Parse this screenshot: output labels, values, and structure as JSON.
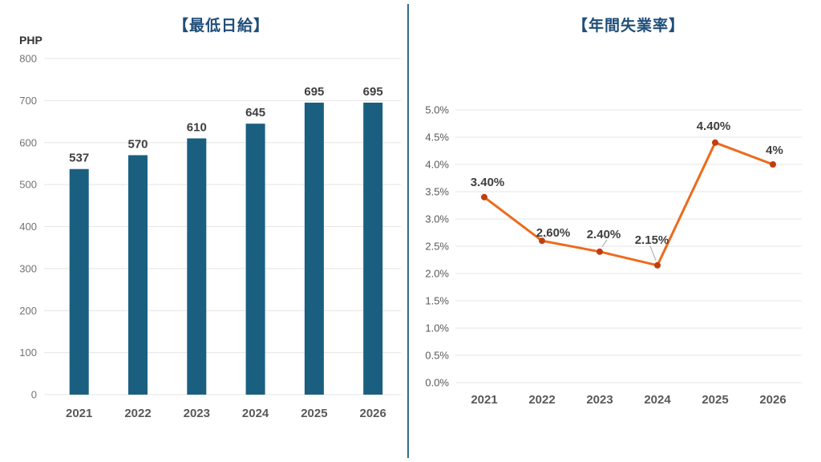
{
  "page": {
    "background": "#ffffff",
    "divider_color": "#2E6D8E"
  },
  "chart_data": [
    {
      "type": "bar",
      "title": "【最低日給】",
      "ylabel": "PHP",
      "categories": [
        "2021",
        "2022",
        "2023",
        "2024",
        "2025",
        "2026"
      ],
      "values": [
        537,
        570,
        610,
        645,
        695,
        695
      ],
      "data_labels": [
        "537",
        "570",
        "610",
        "645",
        "695",
        "695"
      ],
      "ylim": [
        0,
        800
      ],
      "ytick_step": 100,
      "ytick_labels": [
        "0",
        "100",
        "200",
        "300",
        "400",
        "500",
        "600",
        "700",
        "800"
      ],
      "grid": true,
      "legend": "none",
      "bar_color": "#1A5F80",
      "grid_color": "#E4E4E4",
      "value_label_color": "#3F3F3F",
      "ytick_color": "#737373",
      "xtick_color": "#595959",
      "title_color": "#1F4E79"
    },
    {
      "type": "line",
      "title": "【年間失業率】",
      "categories": [
        "2021",
        "2022",
        "2023",
        "2024",
        "2025",
        "2026"
      ],
      "values": [
        3.4,
        2.6,
        2.4,
        2.15,
        4.4,
        4.0
      ],
      "data_labels": [
        "3.40%",
        "2.60%",
        "2.40%",
        "2.15%",
        "4.40%",
        "4%"
      ],
      "ylim": [
        0,
        5
      ],
      "ytick_step": 0.5,
      "ytick_labels": [
        "0.0%",
        "0.5%",
        "1.0%",
        "1.5%",
        "2.0%",
        "2.5%",
        "3.0%",
        "3.5%",
        "4.0%",
        "4.5%",
        "5.0%"
      ],
      "grid": true,
      "legend": "none",
      "line_color": "#EC6B1D",
      "marker_color": "#C03F0E",
      "leader_color": "#A6A6A6",
      "grid_color": "#E4E4E4",
      "value_label_color": "#3F3F3F",
      "ytick_color": "#595959",
      "xtick_color": "#595959",
      "title_color": "#1F4E79"
    }
  ]
}
